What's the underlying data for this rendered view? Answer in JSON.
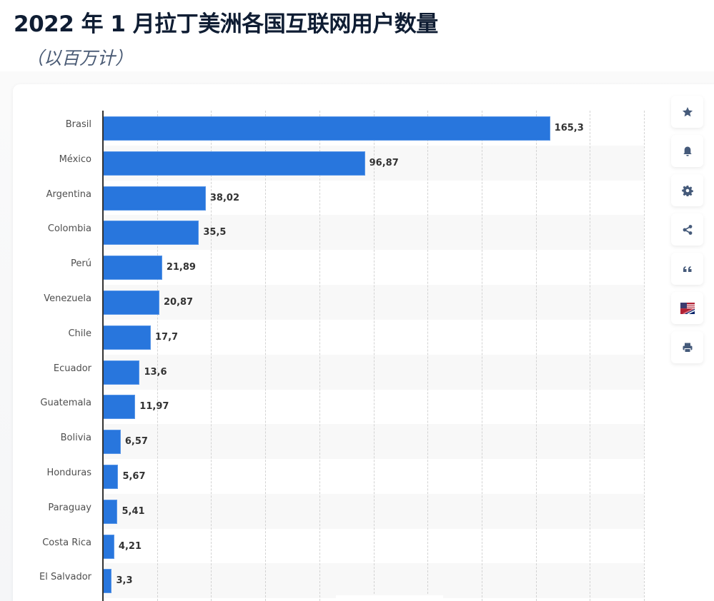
{
  "header": {
    "title": "2022 年 1 月拉丁美洲各国互联网用户数量",
    "subtitle": "（以百万计）"
  },
  "toolbar": {
    "buttons": [
      {
        "name": "favorite-button",
        "icon": "star-icon"
      },
      {
        "name": "notification-button",
        "icon": "bell-icon"
      },
      {
        "name": "settings-button",
        "icon": "gear-icon"
      },
      {
        "name": "share-button",
        "icon": "share-icon"
      },
      {
        "name": "cite-button",
        "icon": "quote-icon"
      },
      {
        "name": "language-button",
        "icon": "us-uk-flag-icon"
      },
      {
        "name": "print-button",
        "icon": "printer-icon"
      }
    ],
    "icon_color": "#455a7a"
  },
  "colors": {
    "bar": "#2876dd",
    "alt_row": "#f8f8f8",
    "title": "#0f1d33"
  },
  "chart_data": {
    "type": "bar",
    "orientation": "horizontal",
    "title": "2022 年 1 月拉丁美洲各国互联网用户数量",
    "subtitle": "（以百万计）",
    "xlabel": "",
    "ylabel": "",
    "categories": [
      "Brasil",
      "México",
      "Argentina",
      "Colombia",
      "Perú",
      "Venezuela",
      "Chile",
      "Ecuador",
      "Guatemala",
      "Bolivia",
      "Honduras",
      "Paraguay",
      "Costa Rica",
      "El Salvador"
    ],
    "values": [
      165.3,
      96.87,
      38.02,
      35.5,
      21.89,
      20.87,
      17.7,
      13.6,
      11.97,
      6.57,
      5.67,
      5.41,
      4.21,
      3.3
    ],
    "value_labels": [
      "165,3",
      "96,87",
      "38,02",
      "35,5",
      "21,89",
      "20,87",
      "17,7",
      "13,6",
      "11,97",
      "6,57",
      "5,67",
      "5,41",
      "4,21",
      "3,3"
    ],
    "xlim": [
      0,
      200
    ],
    "grid_step": 20,
    "grid": true,
    "legend": "none"
  }
}
